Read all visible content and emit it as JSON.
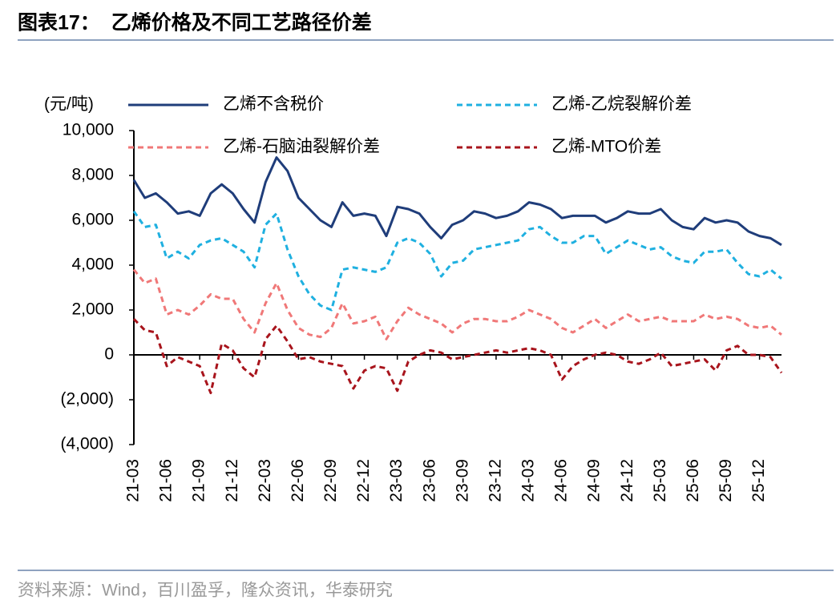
{
  "chart_data": {
    "type": "line",
    "title": "图表17：  乙烯价格及不同工艺路径价差",
    "y_label": "(元/吨)",
    "source": "资料来源：Wind，百川盈孚，隆众资讯，华泰研究",
    "x": [
      "21-03",
      "21-04",
      "21-05",
      "21-06",
      "21-07",
      "21-08",
      "21-09",
      "21-10",
      "21-11",
      "21-12",
      "22-01",
      "22-02",
      "22-03",
      "22-04",
      "22-05",
      "22-06",
      "22-07",
      "22-08",
      "22-09",
      "22-10",
      "22-11",
      "22-12",
      "23-01",
      "23-02",
      "23-03",
      "23-04",
      "23-05",
      "23-06",
      "23-07",
      "23-08",
      "23-09",
      "23-10",
      "23-11",
      "23-12",
      "24-01",
      "24-02",
      "24-03",
      "24-04",
      "24-05",
      "24-06",
      "24-07",
      "24-08",
      "24-09",
      "24-10",
      "24-11",
      "24-12",
      "25-01",
      "25-02",
      "25-03",
      "25-04",
      "25-05",
      "25-06",
      "25-07",
      "25-08",
      "25-09",
      "25-10",
      "25-11",
      "25-12",
      "26-01",
      "26-02"
    ],
    "xticks": [
      "21-03",
      "21-06",
      "21-09",
      "21-12",
      "22-03",
      "22-06",
      "22-09",
      "22-12",
      "23-03",
      "23-06",
      "23-09",
      "23-12",
      "24-03",
      "24-06",
      "24-09",
      "24-12",
      "25-03",
      "25-06",
      "25-09",
      "25-12"
    ],
    "ylim": [
      -4000,
      10000
    ],
    "yticks": [
      {
        "value": -4000,
        "label": "(4,000)"
      },
      {
        "value": -2000,
        "label": "(2,000)"
      },
      0,
      {
        "value": 2000,
        "label": "2,000"
      },
      {
        "value": 4000,
        "label": "4,000"
      },
      {
        "value": 6000,
        "label": "6,000"
      },
      {
        "value": 8000,
        "label": "8,000"
      },
      {
        "value": 10000,
        "label": "10,000"
      }
    ],
    "series": [
      {
        "name": "乙烯不含税价",
        "color": "#1f3d7a",
        "dash": false,
        "values": [
          7800,
          7000,
          7200,
          6800,
          6300,
          6400,
          6200,
          7200,
          7600,
          7200,
          6500,
          5900,
          7700,
          8800,
          8200,
          7000,
          6500,
          6000,
          5700,
          6800,
          6200,
          6300,
          6200,
          5300,
          6600,
          6500,
          6300,
          5700,
          5200,
          5800,
          6000,
          6400,
          6300,
          6100,
          6200,
          6400,
          6800,
          6700,
          6500,
          6100,
          6200,
          6200,
          6200,
          5900,
          6100,
          6400,
          6300,
          6300,
          6500,
          6000,
          5700,
          5600,
          6100,
          5900,
          6000,
          5900,
          5500,
          5300,
          5200,
          4900
        ]
      },
      {
        "name": "乙烯-乙烷裂解价差",
        "color": "#1fb0e0",
        "dash": true,
        "values": [
          6400,
          5700,
          5800,
          4300,
          4600,
          4300,
          4900,
          5100,
          5200,
          4900,
          4600,
          3900,
          5800,
          6300,
          4700,
          3500,
          2700,
          2200,
          2000,
          3800,
          3900,
          3800,
          3700,
          3900,
          5000,
          5200,
          5000,
          4500,
          3500,
          4100,
          4200,
          4700,
          4800,
          4900,
          5000,
          5100,
          5600,
          5700,
          5300,
          5000,
          5000,
          5300,
          5300,
          4500,
          4800,
          5100,
          4900,
          4700,
          4800,
          4400,
          4200,
          4100,
          4600,
          4600,
          4700,
          4100,
          3600,
          3500,
          3800,
          3400
        ]
      },
      {
        "name": "乙烯-石脑油裂解价差",
        "color": "#f07878",
        "dash": true,
        "values": [
          3800,
          3200,
          3400,
          1800,
          2000,
          1800,
          2200,
          2700,
          2500,
          2500,
          1600,
          1000,
          2300,
          3200,
          2000,
          1200,
          900,
          800,
          1200,
          2300,
          1400,
          1500,
          1700,
          700,
          1500,
          2100,
          1800,
          1600,
          1400,
          1000,
          1400,
          1600,
          1600,
          1500,
          1500,
          1700,
          2000,
          1800,
          1600,
          1200,
          1000,
          1300,
          1600,
          1200,
          1500,
          1800,
          1500,
          1600,
          1700,
          1500,
          1500,
          1500,
          1800,
          1600,
          1700,
          1600,
          1300,
          1200,
          1300,
          900
        ]
      },
      {
        "name": "乙烯-MTO价差",
        "color": "#a8141c",
        "dash": true,
        "values": [
          1600,
          1100,
          1000,
          -500,
          -100,
          -300,
          -500,
          -1700,
          500,
          200,
          -600,
          -1000,
          700,
          1300,
          600,
          -200,
          -100,
          -300,
          -400,
          -500,
          -1500,
          -700,
          -500,
          -600,
          -1600,
          -300,
          0,
          200,
          100,
          -200,
          -100,
          0,
          100,
          200,
          100,
          200,
          300,
          200,
          0,
          -1100,
          -500,
          -200,
          0,
          100,
          0,
          -300,
          -400,
          -200,
          100,
          -500,
          -400,
          -300,
          -200,
          -700,
          200,
          400,
          0,
          0,
          -100,
          -800
        ]
      }
    ]
  }
}
